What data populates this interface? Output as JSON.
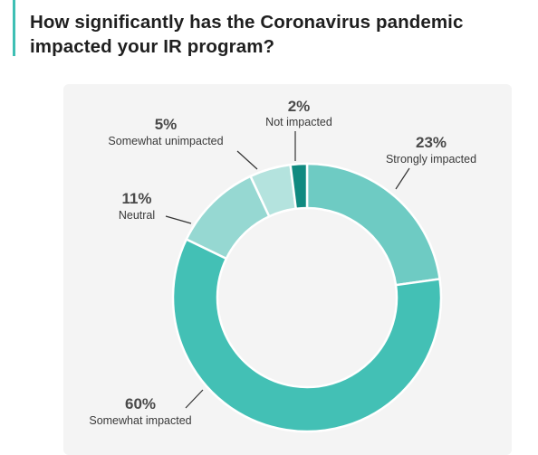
{
  "header": {
    "title": "How significantly has the Coronavirus pandemic impacted your IR program?",
    "accent_color": "#3fbfb4"
  },
  "chart_data": {
    "type": "donut",
    "title": "How significantly has the Coronavirus pandemic impacted your IR program?",
    "unit": "%",
    "categories": [
      "Strongly impacted",
      "Somewhat impacted",
      "Neutral",
      "Somewhat unimpacted",
      "Not impacted"
    ],
    "values": [
      23,
      60,
      11,
      5,
      2
    ],
    "value_labels": [
      "23%",
      "60%",
      "11%",
      "5%",
      "2%"
    ],
    "colors": [
      "#6ecbc3",
      "#43c0b5",
      "#96d8d2",
      "#b4e3de",
      "#108a80"
    ],
    "background": "#f4f4f4"
  }
}
